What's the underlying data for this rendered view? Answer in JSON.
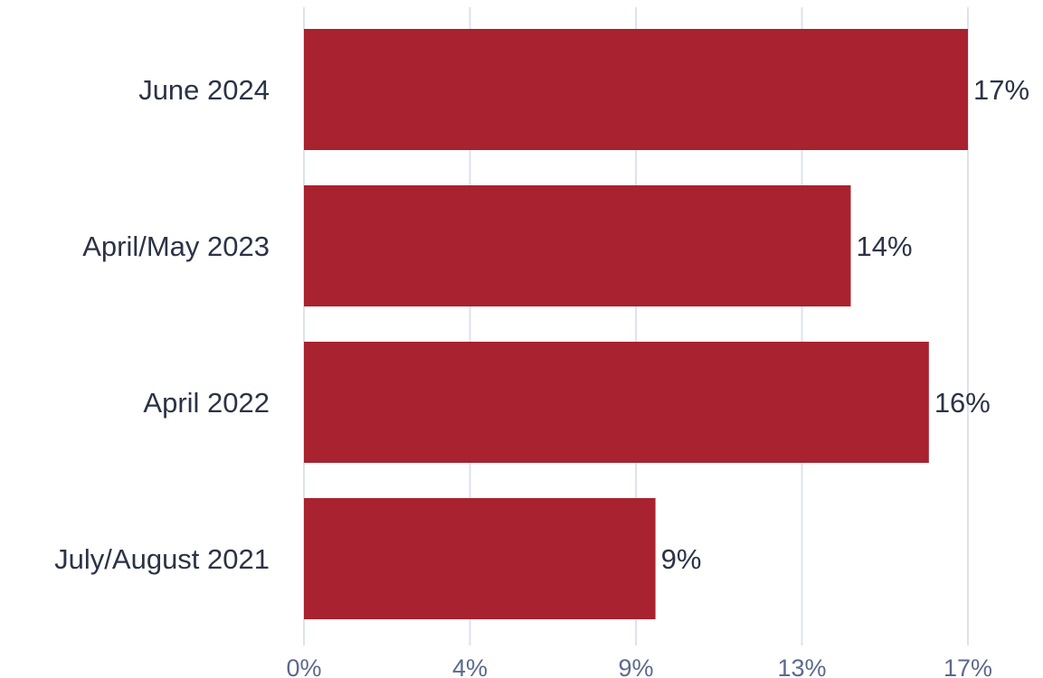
{
  "chart_data": {
    "type": "bar",
    "orientation": "horizontal",
    "categories": [
      "June 2024",
      "April/May 2023",
      "April 2022",
      "July/August 2021"
    ],
    "values": [
      17,
      14,
      16,
      9
    ],
    "value_labels": [
      "17%",
      "14%",
      "16%",
      "9%"
    ],
    "x_ticks": [
      0,
      4.25,
      8.5,
      12.75,
      17
    ],
    "x_tick_labels": [
      "0%",
      "4%",
      "9%",
      "13%",
      "17%"
    ],
    "xlim": [
      0,
      17
    ],
    "grid": true,
    "legend": "none",
    "bar_color": "#a8222f"
  }
}
